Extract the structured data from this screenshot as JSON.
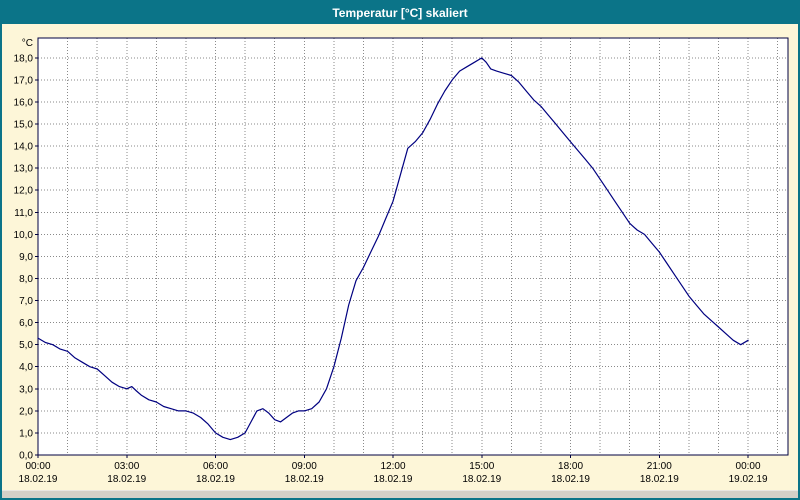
{
  "window": {
    "title": "Temperatur [°C] skaliert"
  },
  "colors": {
    "titlebar_bg": "#0b7488",
    "window_bg": "#fdf6d8",
    "plot_bg": "#ffffff",
    "grid": "#8a8a8a",
    "axis": "#000040",
    "line": "#000080",
    "scrollbar_bg": "#d4d0c8"
  },
  "chart_data": {
    "type": "line",
    "title": "Temperatur [°C] skaliert",
    "xlabel": "",
    "ylabel": "°C",
    "ylim": [
      0,
      18
    ],
    "xlim_hours": [
      0,
      24
    ],
    "grid": true,
    "legend": "none",
    "line_color": "#000080",
    "grid_color": "#8a8a8a",
    "axis_color": "#000040",
    "y_ticks": [
      "18,0",
      "17,0",
      "16,0",
      "15,0",
      "14,0",
      "13,0",
      "12,0",
      "11,0",
      "10,0",
      "9,0",
      "8,0",
      "7,0",
      "6,0",
      "5,0",
      "4,0",
      "3,0",
      "2,0",
      "1,0",
      "0,0"
    ],
    "x_ticks": [
      {
        "hour": 0,
        "time": "00:00",
        "date": "18.02.19"
      },
      {
        "hour": 3,
        "time": "03:00",
        "date": "18.02.19"
      },
      {
        "hour": 6,
        "time": "06:00",
        "date": "18.02.19"
      },
      {
        "hour": 9,
        "time": "09:00",
        "date": "18.02.19"
      },
      {
        "hour": 12,
        "time": "12:00",
        "date": "18.02.19"
      },
      {
        "hour": 15,
        "time": "15:00",
        "date": "18.02.19"
      },
      {
        "hour": 18,
        "time": "18:00",
        "date": "18.02.19"
      },
      {
        "hour": 21,
        "time": "21:00",
        "date": "18.02.19"
      },
      {
        "hour": 24,
        "time": "00:00",
        "date": "19.02.19"
      }
    ],
    "series": [
      {
        "name": "Temperatur [°C]",
        "x": [
          0,
          0.25,
          0.5,
          0.75,
          1,
          1.25,
          1.5,
          1.75,
          2,
          2.25,
          2.5,
          2.75,
          3,
          3.17,
          3.33,
          3.5,
          3.75,
          4,
          4.25,
          4.5,
          4.75,
          5,
          5.25,
          5.5,
          5.75,
          6,
          6.25,
          6.5,
          6.75,
          7,
          7.2,
          7.4,
          7.6,
          7.8,
          8,
          8.2,
          8.4,
          8.6,
          8.8,
          9,
          9.25,
          9.5,
          9.75,
          10,
          10.25,
          10.5,
          10.75,
          11,
          11.25,
          11.5,
          11.75,
          12,
          12.25,
          12.5,
          12.75,
          13,
          13.25,
          13.5,
          13.75,
          14,
          14.25,
          14.5,
          14.75,
          15,
          15.15,
          15.3,
          15.5,
          15.75,
          16,
          16.25,
          16.5,
          16.75,
          17,
          17.25,
          17.5,
          17.75,
          18,
          18.25,
          18.5,
          18.75,
          19,
          19.25,
          19.5,
          19.75,
          20,
          20.25,
          20.5,
          20.75,
          21,
          21.25,
          21.5,
          21.75,
          22,
          22.25,
          22.5,
          22.75,
          23,
          23.25,
          23.5,
          23.75,
          24
        ],
        "y": [
          5.3,
          5.1,
          5.0,
          4.8,
          4.7,
          4.4,
          4.2,
          4.0,
          3.9,
          3.6,
          3.3,
          3.1,
          3.0,
          3.1,
          2.9,
          2.7,
          2.5,
          2.4,
          2.2,
          2.1,
          2.0,
          2.0,
          1.9,
          1.7,
          1.4,
          1.0,
          0.8,
          0.7,
          0.8,
          1.0,
          1.5,
          2.0,
          2.1,
          1.9,
          1.6,
          1.5,
          1.7,
          1.9,
          2.0,
          2.0,
          2.1,
          2.4,
          3.0,
          4.0,
          5.3,
          6.8,
          7.9,
          8.5,
          9.2,
          9.9,
          10.7,
          11.5,
          12.7,
          13.9,
          14.2,
          14.6,
          15.2,
          15.9,
          16.5,
          17.0,
          17.4,
          17.6,
          17.8,
          18.0,
          17.8,
          17.5,
          17.4,
          17.3,
          17.2,
          16.9,
          16.5,
          16.1,
          15.8,
          15.4,
          15.0,
          14.6,
          14.2,
          13.8,
          13.4,
          13.0,
          12.5,
          12.0,
          11.5,
          11.0,
          10.5,
          10.2,
          10.0,
          9.6,
          9.2,
          8.7,
          8.2,
          7.7,
          7.2,
          6.8,
          6.4,
          6.1,
          5.8,
          5.5,
          5.2,
          5.0,
          5.2
        ]
      }
    ]
  }
}
